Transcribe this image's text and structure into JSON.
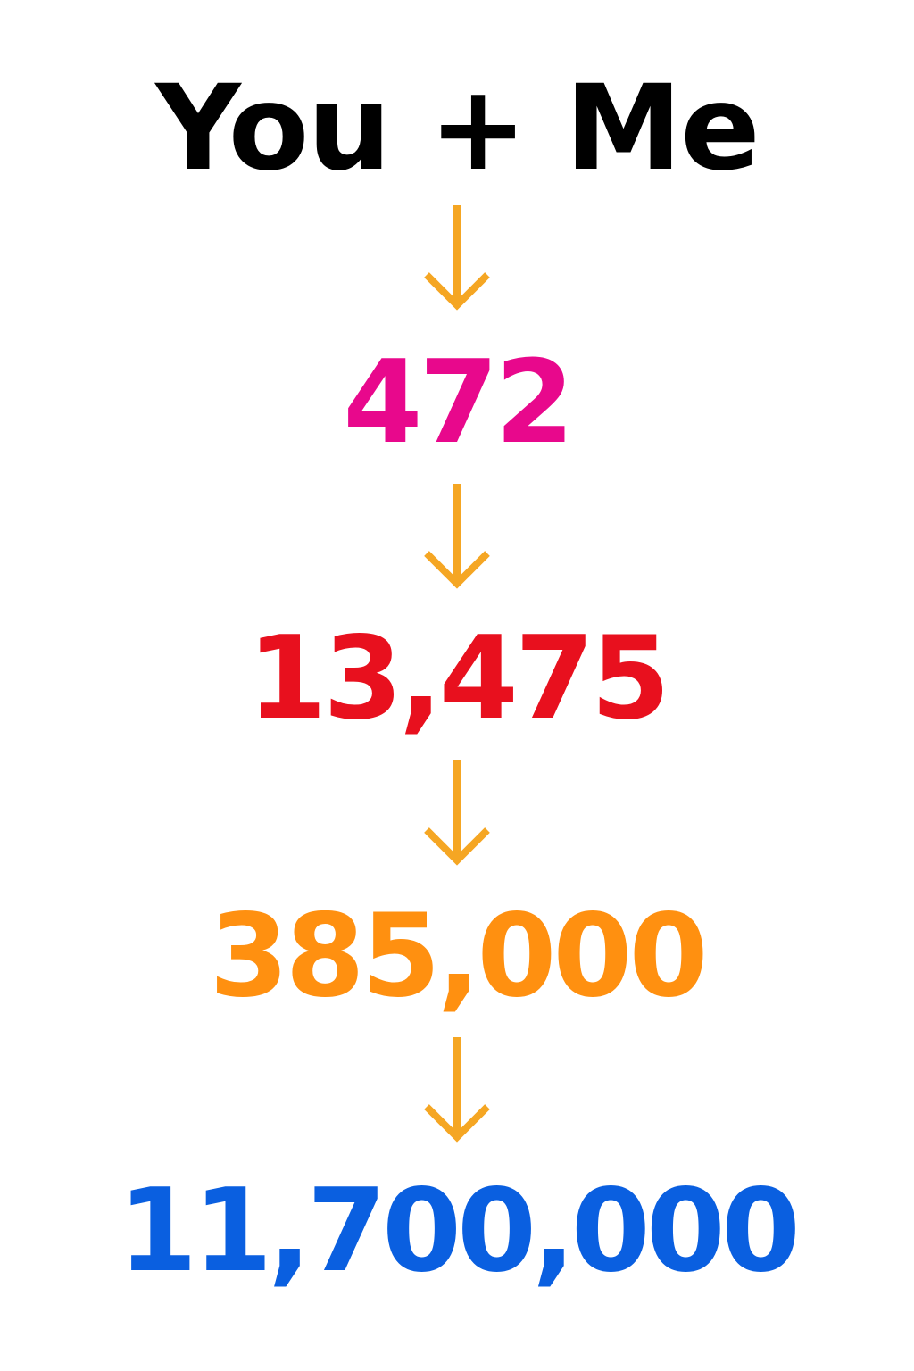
{
  "title": {
    "text": "You + Me",
    "color": "#000000"
  },
  "arrow_color": "#F5A623",
  "arrow_icon": "arrow-down-icon",
  "steps": [
    {
      "value": "472",
      "color": "#E8088C"
    },
    {
      "value": "13,475",
      "color": "#E8101E"
    },
    {
      "value": "385,000",
      "color": "#FF9010"
    },
    {
      "value": "11,700,000",
      "color": "#0A5FE0"
    }
  ]
}
